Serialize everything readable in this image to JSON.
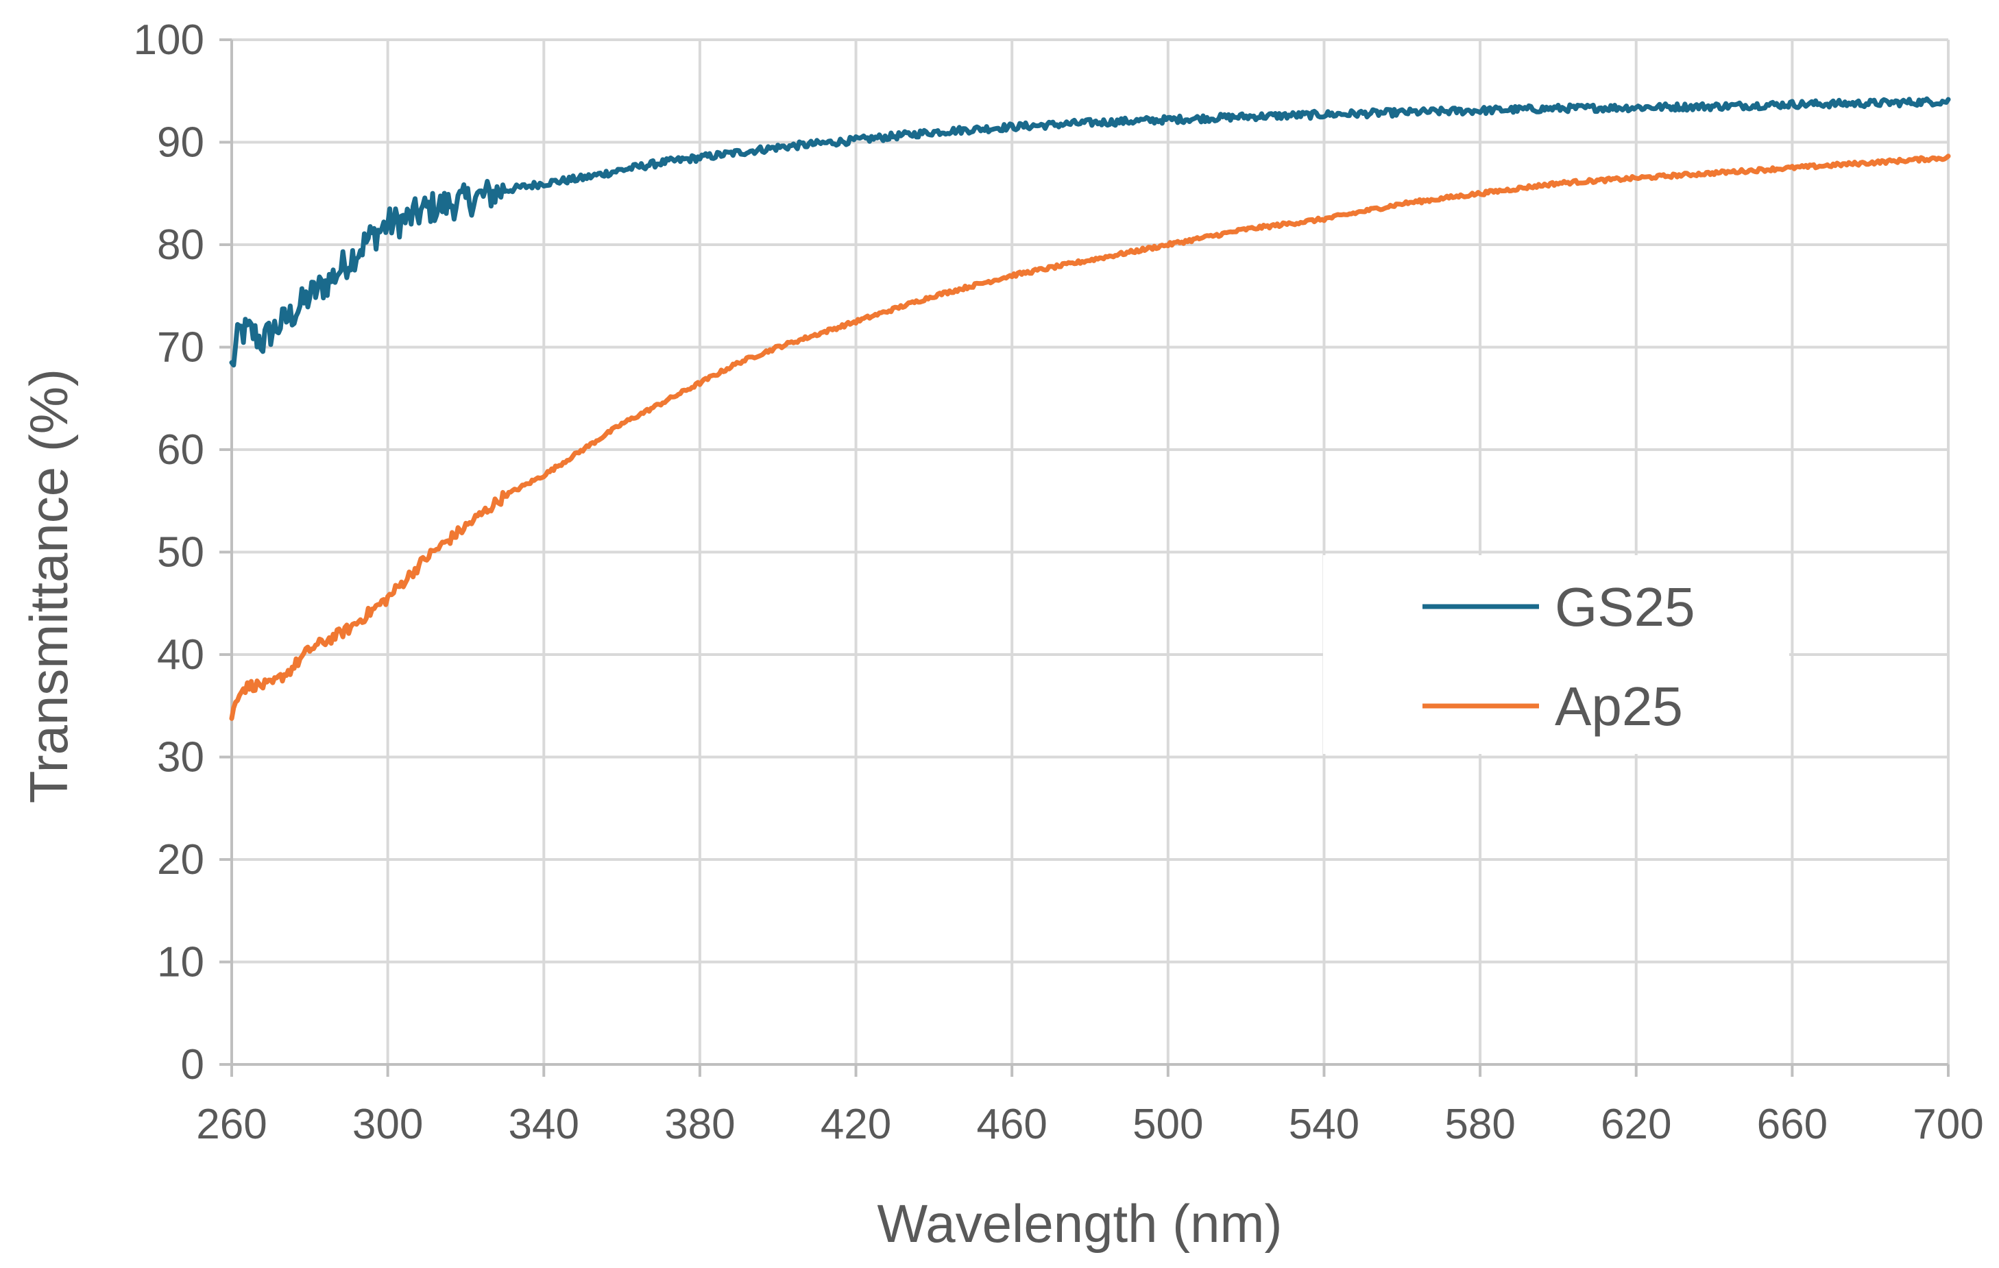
{
  "chart_data": {
    "type": "line",
    "title": "",
    "xlabel": "Wavelength (nm)",
    "ylabel": "Transmittance (%)",
    "xlim": [
      260,
      700
    ],
    "ylim": [
      0,
      100
    ],
    "xticks": [
      260,
      300,
      340,
      380,
      420,
      460,
      500,
      540,
      580,
      620,
      660,
      700
    ],
    "yticks": [
      0,
      10,
      20,
      30,
      40,
      50,
      60,
      70,
      80,
      90,
      100
    ],
    "grid": true,
    "legend_position": "center-right",
    "series": [
      {
        "name": "GS25",
        "color": "#1a6a8c",
        "x": [
          260,
          262,
          265,
          268,
          270,
          275,
          280,
          285,
          290,
          295,
          300,
          305,
          310,
          320,
          330,
          340,
          350,
          360,
          370,
          380,
          390,
          400,
          420,
          440,
          460,
          480,
          500,
          520,
          540,
          560,
          580,
          600,
          620,
          640,
          660,
          680,
          700
        ],
        "y": [
          68,
          71.5,
          71.5,
          70.5,
          71.5,
          73,
          75,
          76.5,
          78.5,
          80.5,
          82,
          82.5,
          83.5,
          84.3,
          85.3,
          86,
          86.5,
          87.3,
          88,
          88.5,
          89,
          89.5,
          90.2,
          91,
          91.5,
          91.9,
          92.2,
          92.5,
          92.7,
          92.9,
          93.1,
          93.3,
          93.4,
          93.5,
          93.7,
          93.8,
          94
        ]
      },
      {
        "name": "Ap25",
        "color": "#f07832",
        "x": [
          260,
          262,
          265,
          270,
          275,
          280,
          290,
          300,
          310,
          320,
          330,
          340,
          350,
          360,
          370,
          380,
          390,
          400,
          420,
          440,
          460,
          480,
          500,
          520,
          540,
          560,
          580,
          600,
          620,
          640,
          660,
          680,
          700
        ],
        "y": [
          34,
          36.5,
          37,
          37,
          38.5,
          40.5,
          42.5,
          45.5,
          49.5,
          52.5,
          55.5,
          57.5,
          60,
          62.5,
          64.5,
          66.5,
          68.5,
          70,
          72.5,
          75,
          77,
          78.5,
          80,
          81.5,
          82.5,
          84,
          85,
          86,
          86.5,
          87,
          87.5,
          88,
          88.5
        ]
      }
    ]
  }
}
